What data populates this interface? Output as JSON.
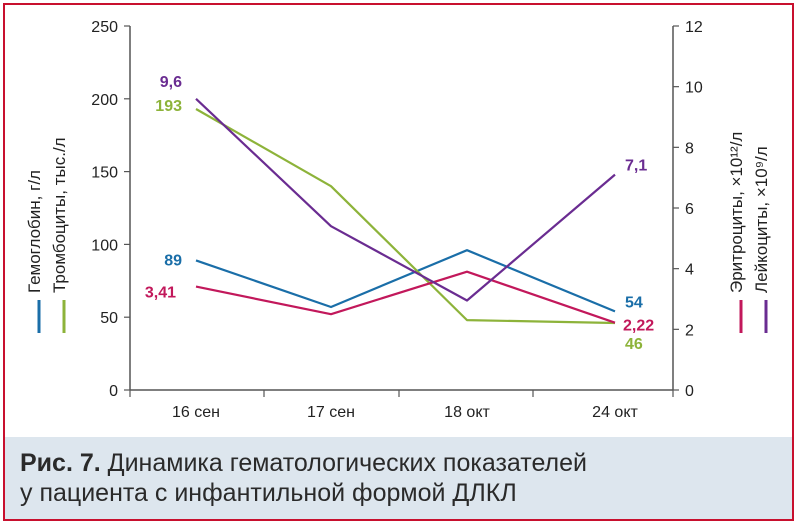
{
  "chart_data": {
    "type": "line",
    "categories": [
      "16 сен",
      "17 сен",
      "18 окт",
      "24 окт"
    ],
    "left_axis": {
      "ylim": [
        0,
        250
      ],
      "ticks": [
        "0",
        "50",
        "100",
        "150",
        "200",
        "250"
      ]
    },
    "right_axis": {
      "ylim": [
        0,
        12
      ],
      "ticks": [
        "0",
        "2",
        "4",
        "6",
        "8",
        "10",
        "12"
      ]
    },
    "left_axis_labels": [
      {
        "text": "Гемоглобин, г/л",
        "color": "#1a6ea8"
      },
      {
        "text": "Тромбоциты, тыс./л",
        "color": "#8db33a"
      }
    ],
    "right_axis_labels": [
      {
        "text": "Эритроциты, ×10¹²/л",
        "color": "#c2185b"
      },
      {
        "text": "Лейкоциты, ×10⁹/л",
        "color": "#6a2c91"
      }
    ],
    "series": [
      {
        "name": "Гемоглобин, г/л",
        "axis": "left",
        "color": "#1a6ea8",
        "values": [
          89,
          57,
          96,
          54
        ],
        "labels": [
          {
            "i": 0,
            "text": "89"
          },
          {
            "i": 3,
            "text": "54"
          }
        ]
      },
      {
        "name": "Тромбоциты, тыс./л",
        "axis": "left",
        "color": "#8db33a",
        "values": [
          193,
          140,
          48,
          46
        ],
        "labels": [
          {
            "i": 0,
            "text": "193"
          },
          {
            "i": 3,
            "text": "46"
          }
        ]
      },
      {
        "name": "Эритроциты, ×10¹²/л",
        "axis": "right",
        "color": "#c2185b",
        "values": [
          3.41,
          2.5,
          3.9,
          2.22
        ],
        "labels": [
          {
            "i": 0,
            "text": "3,41"
          },
          {
            "i": 3,
            "text": "2,22"
          }
        ]
      },
      {
        "name": "Лейкоциты, ×10⁹/л",
        "axis": "right",
        "color": "#6a2c91",
        "values": [
          9.6,
          5.4,
          2.95,
          7.1
        ],
        "labels": [
          {
            "i": 0,
            "text": "9,6"
          },
          {
            "i": 3,
            "text": "7,1"
          }
        ]
      }
    ]
  },
  "caption": {
    "bold": "Рис. 7.",
    "line1": " Динамика гематологических показателей",
    "line2": "у пациента с инфантильной формой ДЛКЛ"
  }
}
